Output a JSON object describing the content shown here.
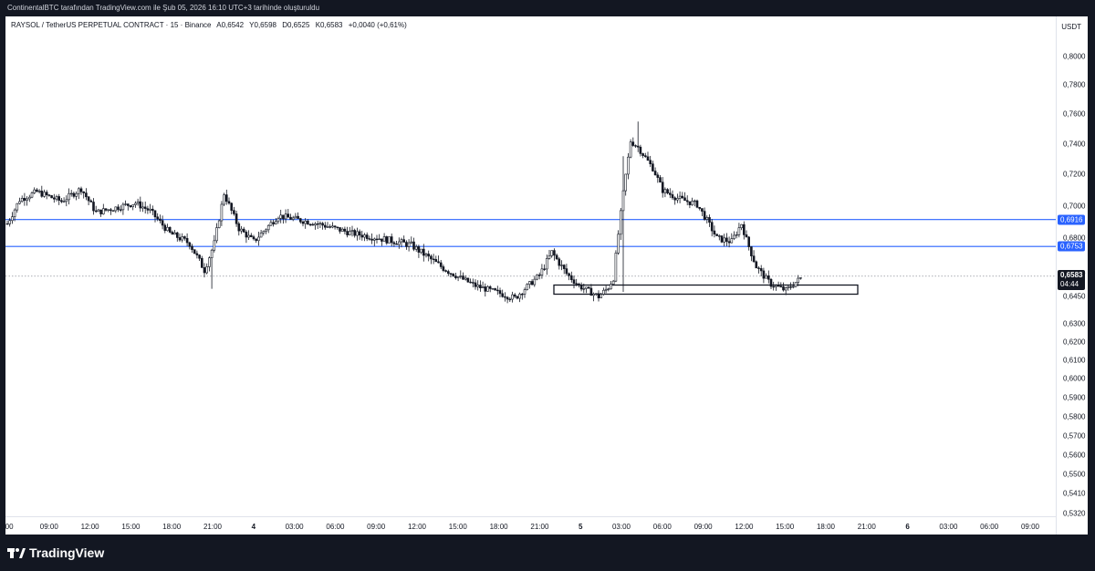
{
  "header": {
    "caption": "ContinentalBTC tarafından TradingView.com ile Şub 05, 2026 16:10 UTC+3 tarihinde oluşturuldu"
  },
  "chart": {
    "symbol": "RAYSOL / TetherUS PERPETUAL CONTRACT · 15 · Binance",
    "ohlc": {
      "open": "A0,6542",
      "high": "Y0,6598",
      "low": "D0,6525",
      "close": "K0,6583",
      "change": "+0,0040 (+0,61%)"
    },
    "currency": "USDT",
    "y_ticks": [
      "0,8000",
      "0,7800",
      "0,7600",
      "0,7400",
      "0,7200",
      "0,7000",
      "0,6800",
      "0,6600",
      "0,6450",
      "0,6300",
      "0,6200",
      "0,6100",
      "0,6000",
      "0,5900",
      "0,5800",
      "0,5700",
      "0,5600",
      "0,5500",
      "0,5410",
      "0,5320"
    ],
    "x_ticks": [
      ":00",
      "09:00",
      "12:00",
      "15:00",
      "18:00",
      "21:00",
      "4",
      "03:00",
      "06:00",
      "09:00",
      "12:00",
      "15:00",
      "18:00",
      "21:00",
      "5",
      "03:00",
      "06:00",
      "09:00",
      "12:00",
      "15:00",
      "18:00",
      "21:00",
      "6",
      "03:00",
      "06:00",
      "09:00"
    ],
    "levels": [
      {
        "value": "0,6916",
        "color": "#2962ff"
      },
      {
        "value": "0,6753",
        "color": "#2962ff"
      }
    ],
    "last_price": {
      "value": "0,6583",
      "countdown": "04:44"
    },
    "zone": {
      "low": 0.6465,
      "high": 0.6525
    },
    "candle_color": "#131722"
  },
  "footer": {
    "brand": "TradingView"
  },
  "chart_data": {
    "type": "candlestick",
    "title": "",
    "ylabel": "USDT",
    "ylim": [
      0.53,
      0.81
    ],
    "anchors": [
      {
        "i": 0,
        "p": 0.689
      },
      {
        "i": 5,
        "p": 0.704
      },
      {
        "i": 12,
        "p": 0.709
      },
      {
        "i": 22,
        "p": 0.703
      },
      {
        "i": 30,
        "p": 0.711
      },
      {
        "i": 36,
        "p": 0.696
      },
      {
        "i": 52,
        "p": 0.702
      },
      {
        "i": 58,
        "p": 0.697
      },
      {
        "i": 66,
        "p": 0.683
      },
      {
        "i": 74,
        "p": 0.677
      },
      {
        "i": 80,
        "p": 0.662
      },
      {
        "i": 84,
        "p": 0.677
      },
      {
        "i": 88,
        "p": 0.708
      },
      {
        "i": 94,
        "p": 0.686
      },
      {
        "i": 100,
        "p": 0.678
      },
      {
        "i": 110,
        "p": 0.694
      },
      {
        "i": 126,
        "p": 0.689
      },
      {
        "i": 140,
        "p": 0.683
      },
      {
        "i": 158,
        "p": 0.678
      },
      {
        "i": 164,
        "p": 0.676
      },
      {
        "i": 176,
        "p": 0.664
      },
      {
        "i": 190,
        "p": 0.652
      },
      {
        "i": 206,
        "p": 0.644
      },
      {
        "i": 216,
        "p": 0.659
      },
      {
        "i": 221,
        "p": 0.672
      },
      {
        "i": 227,
        "p": 0.66
      },
      {
        "i": 232,
        "p": 0.652
      },
      {
        "i": 240,
        "p": 0.645
      },
      {
        "i": 244,
        "p": 0.651
      },
      {
        "i": 246,
        "p": 0.657
      },
      {
        "i": 250,
        "p": 0.708
      },
      {
        "i": 253,
        "p": 0.742
      },
      {
        "i": 256,
        "p": 0.738
      },
      {
        "i": 262,
        "p": 0.724
      },
      {
        "i": 266,
        "p": 0.71
      },
      {
        "i": 272,
        "p": 0.705
      },
      {
        "i": 280,
        "p": 0.701
      },
      {
        "i": 284,
        "p": 0.691
      },
      {
        "i": 288,
        "p": 0.68
      },
      {
        "i": 294,
        "p": 0.678
      },
      {
        "i": 298,
        "p": 0.689
      },
      {
        "i": 300,
        "p": 0.679
      },
      {
        "i": 304,
        "p": 0.664
      },
      {
        "i": 310,
        "p": 0.653
      },
      {
        "i": 316,
        "p": 0.649
      },
      {
        "i": 322,
        "p": 0.657
      }
    ]
  }
}
